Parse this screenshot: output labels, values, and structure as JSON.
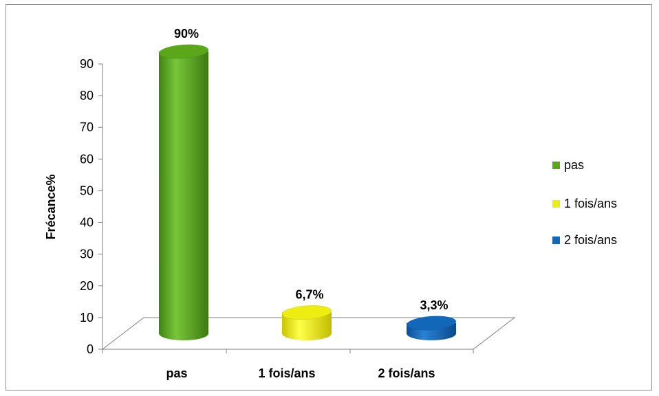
{
  "chart_data": {
    "type": "bar",
    "style": "3d-cylinder",
    "categories": [
      "pas",
      "1 fois/ans",
      "2 fois/ans"
    ],
    "values": [
      90,
      6.7,
      3.3
    ],
    "data_labels": [
      "90%",
      "6,7%",
      "3,3%"
    ],
    "colors": [
      "#5aa71a",
      "#eded12",
      "#1267b8"
    ],
    "ylabel": "Frécance%",
    "xlabel": "",
    "ylim": [
      0,
      90
    ],
    "y_ticks": [
      0,
      10,
      20,
      30,
      40,
      50,
      60,
      70,
      80,
      90
    ],
    "grid": false,
    "legend": {
      "position": "right",
      "items": [
        "pas",
        "1 fois/ans",
        "2 fois/ans"
      ]
    }
  }
}
